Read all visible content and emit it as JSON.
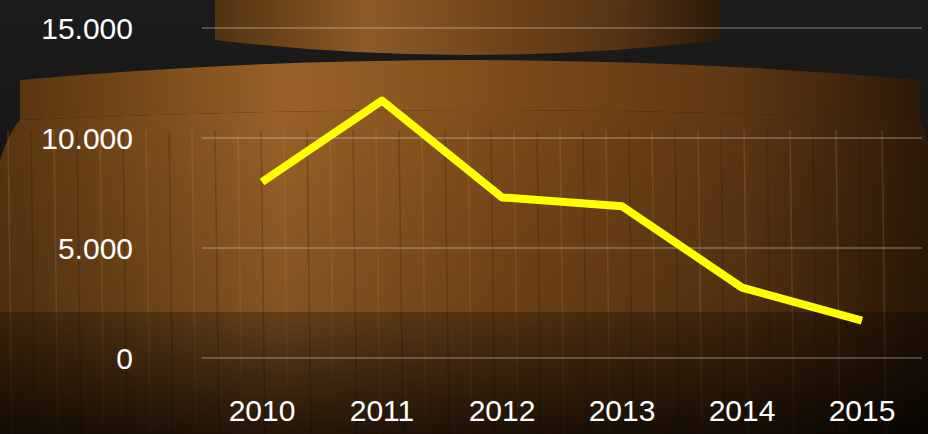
{
  "chart_data": {
    "type": "line",
    "categories": [
      "2010",
      "2011",
      "2012",
      "2013",
      "2014",
      "2015"
    ],
    "values": [
      8000,
      11700,
      7300,
      6900,
      3200,
      1700
    ],
    "color": "#ffff00",
    "ylim": [
      0,
      15000
    ],
    "yticks": [
      0,
      {
        "value": 5000,
        "label": "5.000"
      },
      {
        "value": 10000,
        "label": "10.000"
      },
      {
        "value": 15000,
        "label": "15.000"
      }
    ],
    "grid": true
  }
}
